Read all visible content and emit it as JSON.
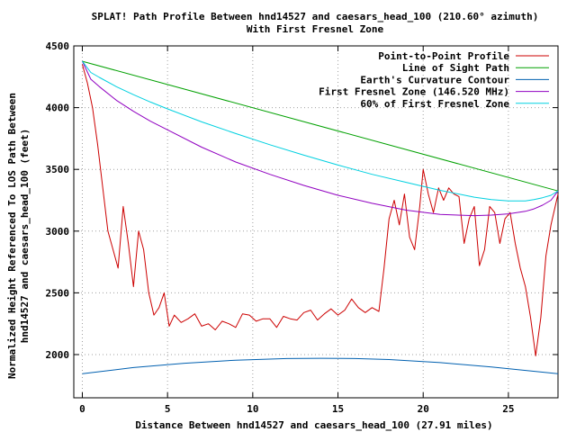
{
  "chart_data": {
    "type": "line",
    "title_line1": "SPLAT! Path Profile Between hnd14527 and caesars_head_100 (210.60° azimuth)",
    "title_line2": "With First Fresnel Zone",
    "xlabel": "Distance Between hnd14527 and caesars_head_100 (27.91 miles)",
    "ylabel_line1": "Normalized Height Referenced To LOS Path Between",
    "ylabel_line2": "hnd14527 and caesars_head_100 (feet)",
    "xlim": [
      -0.5,
      27.91
    ],
    "ylim": [
      1650,
      4500
    ],
    "x_ticks": [
      0,
      5,
      10,
      15,
      20,
      25
    ],
    "y_ticks": [
      2000,
      2500,
      3000,
      3500,
      4000,
      4500
    ],
    "grid": true,
    "legend_position": "top-right",
    "series": [
      {
        "name": "Point-to-Point Profile",
        "color": "#cc0000",
        "x": [
          0,
          0.3,
          0.6,
          0.9,
          1.2,
          1.5,
          1.8,
          2.1,
          2.4,
          2.7,
          3.0,
          3.3,
          3.6,
          3.9,
          4.2,
          4.5,
          4.8,
          5.1,
          5.4,
          5.8,
          6.2,
          6.6,
          7.0,
          7.4,
          7.8,
          8.2,
          8.6,
          9.0,
          9.4,
          9.8,
          10.2,
          10.6,
          11.0,
          11.4,
          11.8,
          12.2,
          12.6,
          13.0,
          13.4,
          13.8,
          14.2,
          14.6,
          15.0,
          15.4,
          15.8,
          16.2,
          16.6,
          17.0,
          17.4,
          17.7,
          18.0,
          18.3,
          18.6,
          18.9,
          19.2,
          19.5,
          19.8,
          20.0,
          20.3,
          20.6,
          20.9,
          21.2,
          21.5,
          21.8,
          22.1,
          22.4,
          22.7,
          23.0,
          23.3,
          23.6,
          23.9,
          24.2,
          24.5,
          24.8,
          25.1,
          25.4,
          25.7,
          26.0,
          26.3,
          26.6,
          26.9,
          27.2,
          27.5,
          27.91
        ],
        "y": [
          4350,
          4200,
          4000,
          3700,
          3350,
          3000,
          2850,
          2700,
          3200,
          2900,
          2550,
          3000,
          2850,
          2500,
          2320,
          2380,
          2500,
          2230,
          2320,
          2260,
          2290,
          2330,
          2230,
          2250,
          2200,
          2270,
          2250,
          2220,
          2330,
          2320,
          2270,
          2290,
          2290,
          2220,
          2310,
          2290,
          2280,
          2340,
          2360,
          2280,
          2330,
          2370,
          2320,
          2360,
          2450,
          2380,
          2340,
          2380,
          2350,
          2700,
          3100,
          3250,
          3050,
          3300,
          2950,
          2850,
          3200,
          3500,
          3300,
          3150,
          3350,
          3250,
          3350,
          3300,
          3280,
          2900,
          3100,
          3200,
          2720,
          2850,
          3200,
          3150,
          2900,
          3100,
          3150,
          2900,
          2700,
          2550,
          2300,
          1990,
          2300,
          2800,
          3050,
          3300
        ]
      },
      {
        "name": "Line of Sight Path",
        "color": "#00a000",
        "x": [
          0,
          27.91
        ],
        "y": [
          4375,
          3325
        ]
      },
      {
        "name": "Earth's Curvature Contour",
        "color": "#0060b0",
        "x": [
          0,
          3,
          6,
          9,
          12,
          14,
          16,
          18,
          21,
          24,
          27.91
        ],
        "y": [
          1845,
          1895,
          1930,
          1955,
          1968,
          1970,
          1968,
          1960,
          1935,
          1900,
          1845
        ]
      },
      {
        "name": "First Fresnel Zone (146.520 MHz)",
        "color": "#9000c0",
        "x": [
          0,
          0.5,
          1,
          2,
          3,
          4,
          5,
          7,
          9,
          11,
          13,
          15,
          17,
          19,
          21,
          23,
          24,
          25,
          26,
          26.5,
          27,
          27.5,
          27.91
        ],
        "y": [
          4375,
          4230,
          4170,
          4060,
          3970,
          3890,
          3820,
          3680,
          3560,
          3460,
          3370,
          3290,
          3225,
          3170,
          3135,
          3125,
          3130,
          3140,
          3160,
          3180,
          3210,
          3250,
          3325
        ]
      },
      {
        "name": "60% of First Fresnel Zone",
        "color": "#00d0e0",
        "x": [
          0,
          0.5,
          1,
          2,
          3,
          4,
          5,
          7,
          9,
          11,
          13,
          15,
          17,
          19,
          21,
          23,
          24,
          25,
          26,
          26.5,
          27,
          27.5,
          27.91
        ],
        "y": [
          4375,
          4285,
          4245,
          4170,
          4105,
          4045,
          3990,
          3885,
          3790,
          3700,
          3615,
          3535,
          3460,
          3395,
          3330,
          3275,
          3255,
          3245,
          3245,
          3255,
          3270,
          3290,
          3325
        ]
      }
    ]
  }
}
